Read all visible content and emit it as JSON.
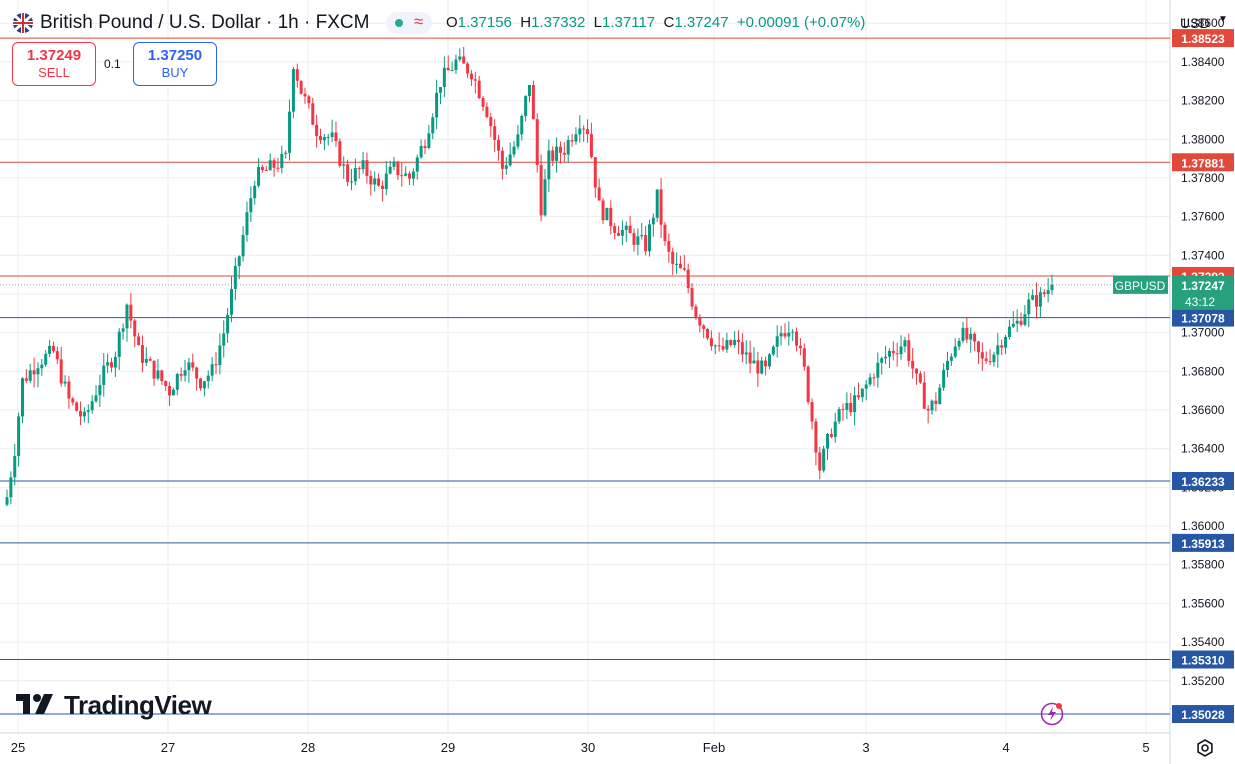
{
  "header": {
    "title": "British Pound / U.S. Dollar · 1h · FXCM",
    "ohlc": {
      "o_label": "O",
      "o": "1.37156",
      "h_label": "H",
      "h": "1.37332",
      "l_label": "L",
      "l": "1.37117",
      "c_label": "C",
      "c": "1.37247",
      "change": "+0.00091 (+0.07%)"
    },
    "live_icon": "wave-icon"
  },
  "trade": {
    "sell_price": "1.37249",
    "sell_label": "SELL",
    "buy_price": "1.37250",
    "buy_label": "BUY",
    "spread": "0.1"
  },
  "currency_selector": "USD",
  "brand": "TradingView",
  "colors": {
    "up": "#089981",
    "down": "#f23645",
    "resistance": "#e2493b",
    "support": "#2757a4",
    "grid": "#eceef2",
    "axis": "#131722"
  },
  "chart_data": {
    "type": "candlestick",
    "symbol": "GBPUSD",
    "timeframe": "1h",
    "y_axis": {
      "ylim": [
        1.3493,
        1.3872
      ],
      "ticks": [
        "1.38600",
        "1.38400",
        "1.38200",
        "1.38000",
        "1.37800",
        "1.37600",
        "1.37400",
        "1.37200",
        "1.37000",
        "1.36800",
        "1.36600",
        "1.36400",
        "1.36200",
        "1.36000",
        "1.35800",
        "1.35600",
        "1.35400",
        "1.35200"
      ]
    },
    "x_axis": {
      "ticks": [
        {
          "label": "25",
          "day": 0
        },
        {
          "label": "27",
          "day": 1
        },
        {
          "label": "28",
          "day": 2
        },
        {
          "label": "29",
          "day": 3
        },
        {
          "label": "30",
          "day": 4
        },
        {
          "label": "Feb",
          "day": 5
        },
        {
          "label": "3",
          "day": 6
        },
        {
          "label": "4",
          "day": 7
        },
        {
          "label": "5",
          "day": 8
        }
      ]
    },
    "horizontal_lines": [
      {
        "price": 1.38523,
        "label": "1.38523",
        "kind": "resistance"
      },
      {
        "price": 1.37881,
        "label": "1.37881",
        "kind": "resistance"
      },
      {
        "price": 1.37293,
        "label": "1.37293",
        "kind": "resistance"
      },
      {
        "price": 1.37078,
        "label": "1.37078",
        "kind": "support"
      },
      {
        "price": 1.36233,
        "label": "1.36233",
        "kind": "support"
      },
      {
        "price": 1.35913,
        "label": "1.35913",
        "kind": "support"
      },
      {
        "price": 1.3531,
        "label": "1.35310",
        "kind": "support"
      },
      {
        "price": 1.35028,
        "label": "1.35028",
        "kind": "support"
      }
    ],
    "current_price": {
      "value": 1.37247,
      "label": "1.37247",
      "symbol_tag": "GBPUSD",
      "countdown": "43:12"
    },
    "anchors": [
      [
        0,
        1.3615
      ],
      [
        2,
        1.364
      ],
      [
        4,
        1.3675
      ],
      [
        8,
        1.3685
      ],
      [
        12,
        1.369
      ],
      [
        16,
        1.3665
      ],
      [
        20,
        1.3655
      ],
      [
        24,
        1.3675
      ],
      [
        28,
        1.369
      ],
      [
        31,
        1.3715
      ],
      [
        34,
        1.369
      ],
      [
        38,
        1.368
      ],
      [
        42,
        1.367
      ],
      [
        46,
        1.3685
      ],
      [
        50,
        1.3675
      ],
      [
        53,
        1.368
      ],
      [
        56,
        1.37
      ],
      [
        60,
        1.374
      ],
      [
        64,
        1.378
      ],
      [
        68,
        1.3785
      ],
      [
        72,
        1.379
      ],
      [
        74,
        1.384
      ],
      [
        76,
        1.3825
      ],
      [
        80,
        1.3805
      ],
      [
        84,
        1.38
      ],
      [
        88,
        1.378
      ],
      [
        92,
        1.3785
      ],
      [
        96,
        1.3775
      ],
      [
        100,
        1.3785
      ],
      [
        104,
        1.378
      ],
      [
        108,
        1.38
      ],
      [
        112,
        1.383
      ],
      [
        116,
        1.384
      ],
      [
        120,
        1.3835
      ],
      [
        124,
        1.3815
      ],
      [
        128,
        1.3785
      ],
      [
        132,
        1.38
      ],
      [
        135,
        1.383
      ],
      [
        138,
        1.3765
      ],
      [
        140,
        1.379
      ],
      [
        144,
        1.3795
      ],
      [
        148,
        1.381
      ],
      [
        150,
        1.3805
      ],
      [
        153,
        1.3765
      ],
      [
        157,
        1.3755
      ],
      [
        161,
        1.375
      ],
      [
        165,
        1.3745
      ],
      [
        168,
        1.377
      ],
      [
        170,
        1.3745
      ],
      [
        172,
        1.3735
      ],
      [
        175,
        1.373
      ],
      [
        178,
        1.371
      ],
      [
        181,
        1.37
      ],
      [
        184,
        1.369
      ],
      [
        188,
        1.3695
      ],
      [
        192,
        1.3685
      ],
      [
        196,
        1.368
      ],
      [
        200,
        1.37
      ],
      [
        203,
        1.3705
      ],
      [
        206,
        1.368
      ],
      [
        208,
        1.3655
      ],
      [
        210,
        1.363
      ],
      [
        213,
        1.365
      ],
      [
        216,
        1.366
      ],
      [
        220,
        1.3665
      ],
      [
        224,
        1.368
      ],
      [
        228,
        1.369
      ],
      [
        232,
        1.3695
      ],
      [
        235,
        1.3675
      ],
      [
        238,
        1.366
      ],
      [
        240,
        1.3665
      ],
      [
        243,
        1.3685
      ],
      [
        246,
        1.37
      ],
      [
        249,
        1.3695
      ],
      [
        252,
        1.3685
      ],
      [
        255,
        1.369
      ],
      [
        258,
        1.37
      ],
      [
        261,
        1.3705
      ],
      [
        264,
        1.3715
      ],
      [
        267,
        1.3718
      ],
      [
        270,
        1.3725
      ]
    ]
  }
}
